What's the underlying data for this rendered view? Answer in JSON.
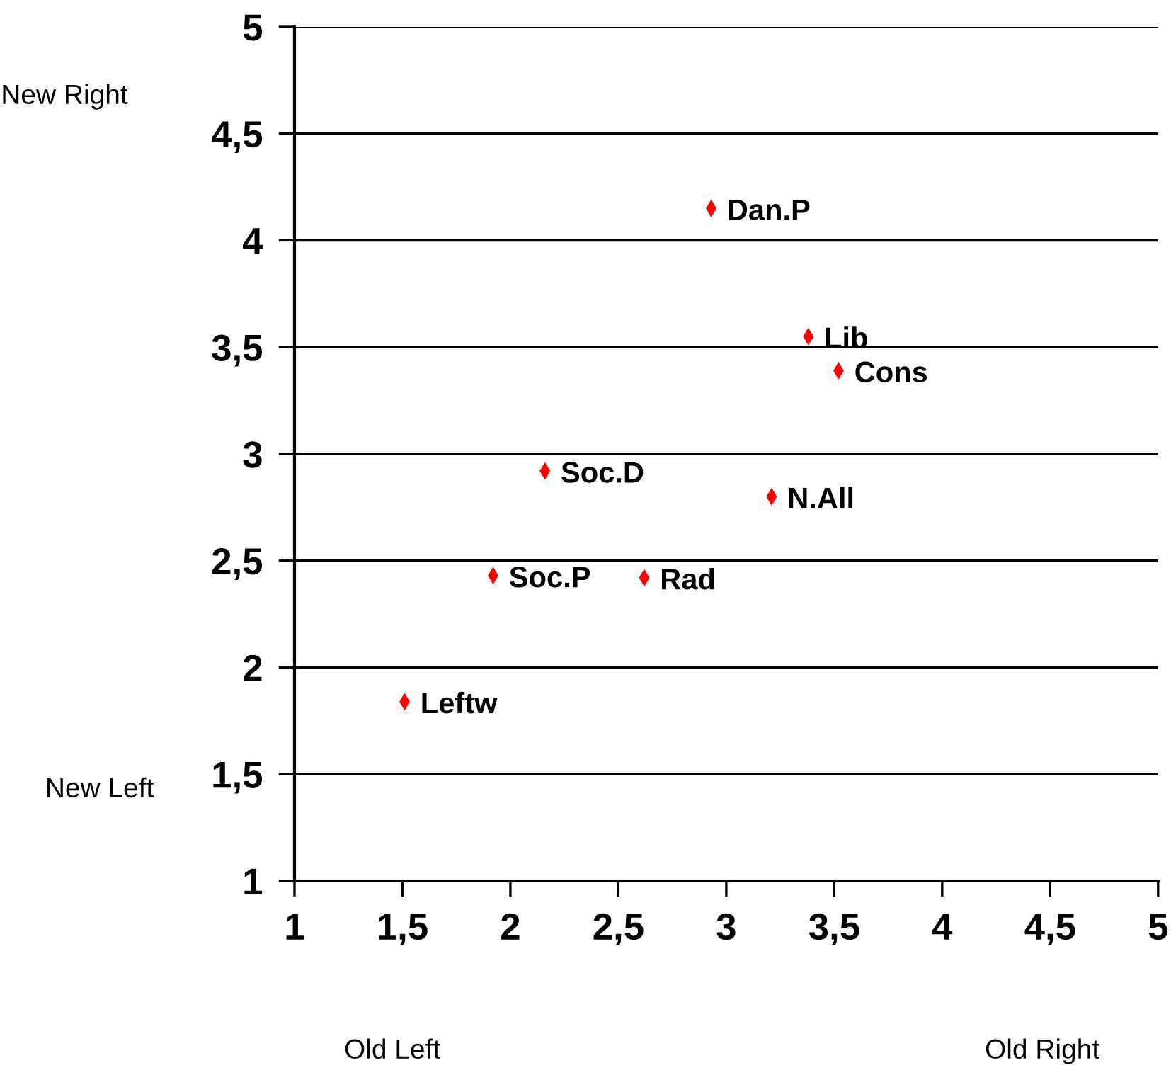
{
  "chart_data": {
    "type": "scatter",
    "series": [
      {
        "color": "#ff0000",
        "x": [
          2.93,
          3.38,
          3.52,
          2.16,
          3.21,
          1.92,
          2.62,
          1.51
        ],
        "values": [
          4.15,
          3.55,
          3.39,
          2.92,
          2.8,
          2.43,
          2.42,
          1.84
        ]
      }
    ],
    "marker": "diamond",
    "xlim": [
      1,
      5
    ],
    "ylim": [
      1,
      5
    ],
    "xticks": [
      1,
      {
        "value": 1.5,
        "label": "1,5"
      },
      2,
      {
        "value": 2.5,
        "label": "2,5"
      },
      3,
      {
        "value": 3.5,
        "label": "3,5"
      },
      4,
      {
        "value": 4.5,
        "label": "4,5"
      },
      5
    ],
    "yticks": [
      1,
      {
        "value": 1.5,
        "label": "1,5"
      },
      2,
      {
        "value": 2.5,
        "label": "2,5"
      },
      3,
      {
        "value": 3.5,
        "label": "3,5"
      },
      4,
      {
        "value": 4.5,
        "label": "4,5"
      },
      5
    ],
    "grid": "y",
    "annotations": [
      {
        "text": "Dan.P",
        "x": 2.93,
        "y": 4.15
      },
      {
        "text": "Lib",
        "x": 3.38,
        "y": 3.55
      },
      {
        "text": "Cons",
        "x": 3.52,
        "y": 3.39
      },
      {
        "text": "Soc.D",
        "x": 2.16,
        "y": 2.92
      },
      {
        "text": "N.All",
        "x": 3.21,
        "y": 2.8
      },
      {
        "text": "Soc.P",
        "x": 1.92,
        "y": 2.43
      },
      {
        "text": "Rad",
        "x": 2.62,
        "y": 2.42
      },
      {
        "text": "Leftw",
        "x": 1.51,
        "y": 1.84
      },
      "New Right",
      "New Left",
      "Old Left",
      "Old Right"
    ]
  }
}
